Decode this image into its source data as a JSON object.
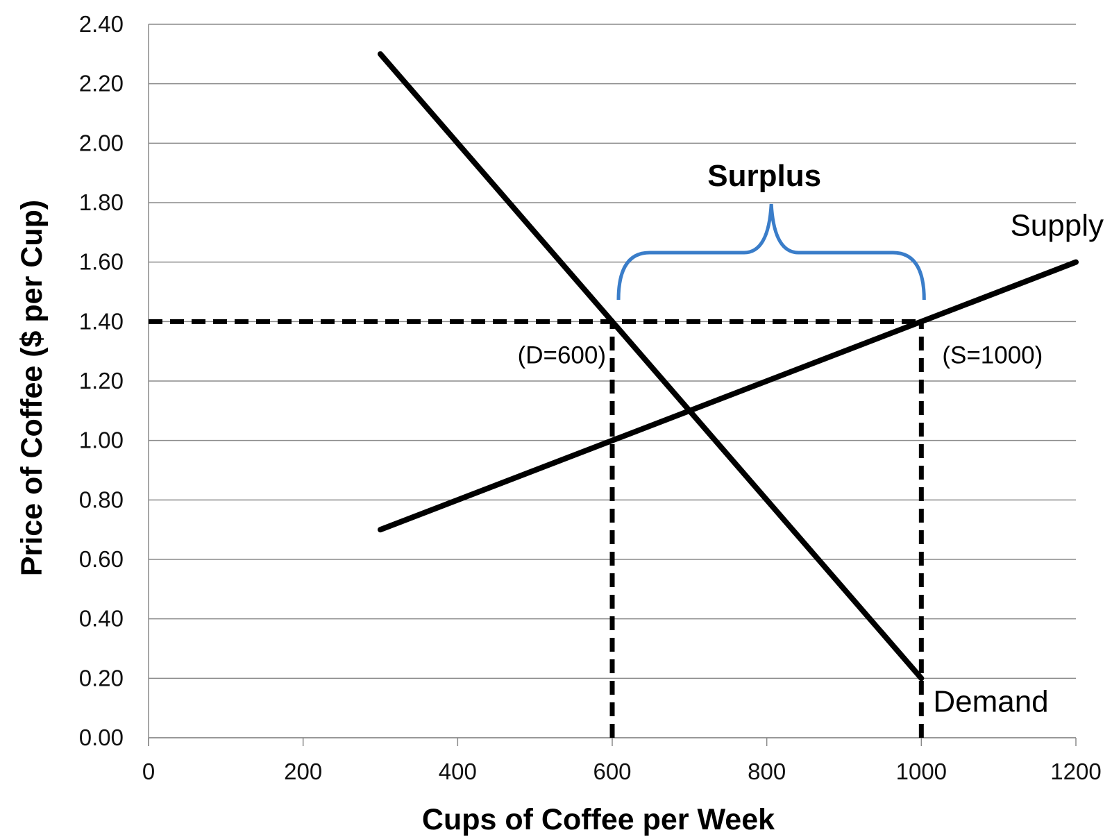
{
  "chart_data": {
    "type": "line",
    "xlabel": "Cups of Coffee per Week",
    "ylabel": "Price of Coffee ($ per Cup)",
    "xlim": [
      0,
      1200
    ],
    "ylim": [
      0,
      2.4
    ],
    "x_ticks": [
      "0",
      "200",
      "400",
      "600",
      "800",
      "1000",
      "1200"
    ],
    "y_ticks": [
      "0.00",
      "0.20",
      "0.40",
      "0.60",
      "0.80",
      "1.00",
      "1.20",
      "1.40",
      "1.60",
      "1.80",
      "2.00",
      "2.20",
      "2.40"
    ],
    "grid": "horizontal",
    "series": [
      {
        "name": "Demand",
        "x": [
          300,
          1000
        ],
        "y": [
          2.3,
          0.2
        ],
        "color": "#000000"
      },
      {
        "name": "Supply",
        "x": [
          300,
          1200
        ],
        "y": [
          0.7,
          1.6
        ],
        "color": "#000000"
      }
    ],
    "reference_lines": [
      {
        "type": "horizontal",
        "y": 1.4,
        "x_from": 0,
        "x_to": 1000,
        "style": "dashed"
      },
      {
        "type": "vertical",
        "x": 600,
        "y_from": 0,
        "y_to": 1.4,
        "style": "dashed"
      },
      {
        "type": "vertical",
        "x": 1000,
        "y_from": 0,
        "y_to": 1.4,
        "style": "dashed"
      }
    ],
    "annotations": [
      {
        "text": "(D=600)",
        "x": 600,
        "y": 1.4
      },
      {
        "text": "(S=1000)",
        "x": 1000,
        "y": 1.4
      }
    ],
    "bracket": {
      "label": "Surplus",
      "x_from": 600,
      "x_to": 1000,
      "color": "#3a7dc9"
    }
  }
}
